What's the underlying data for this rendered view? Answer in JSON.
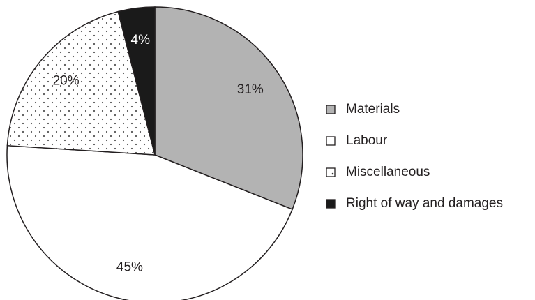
{
  "chart_data": {
    "type": "pie",
    "categories": [
      "Materials",
      "Labour",
      "Miscellaneous",
      "Right of way and damages"
    ],
    "values": [
      31,
      45,
      20,
      4
    ],
    "value_labels": [
      "31%",
      "45%",
      "20%",
      "4%"
    ],
    "colors": [
      "#b3b3b3",
      "#ffffff",
      "#ffffff",
      "#1a1a1a"
    ],
    "patterns": [
      null,
      null,
      "dots",
      null
    ],
    "start_angle": 0,
    "direction": "clockwise",
    "legend": "right"
  }
}
